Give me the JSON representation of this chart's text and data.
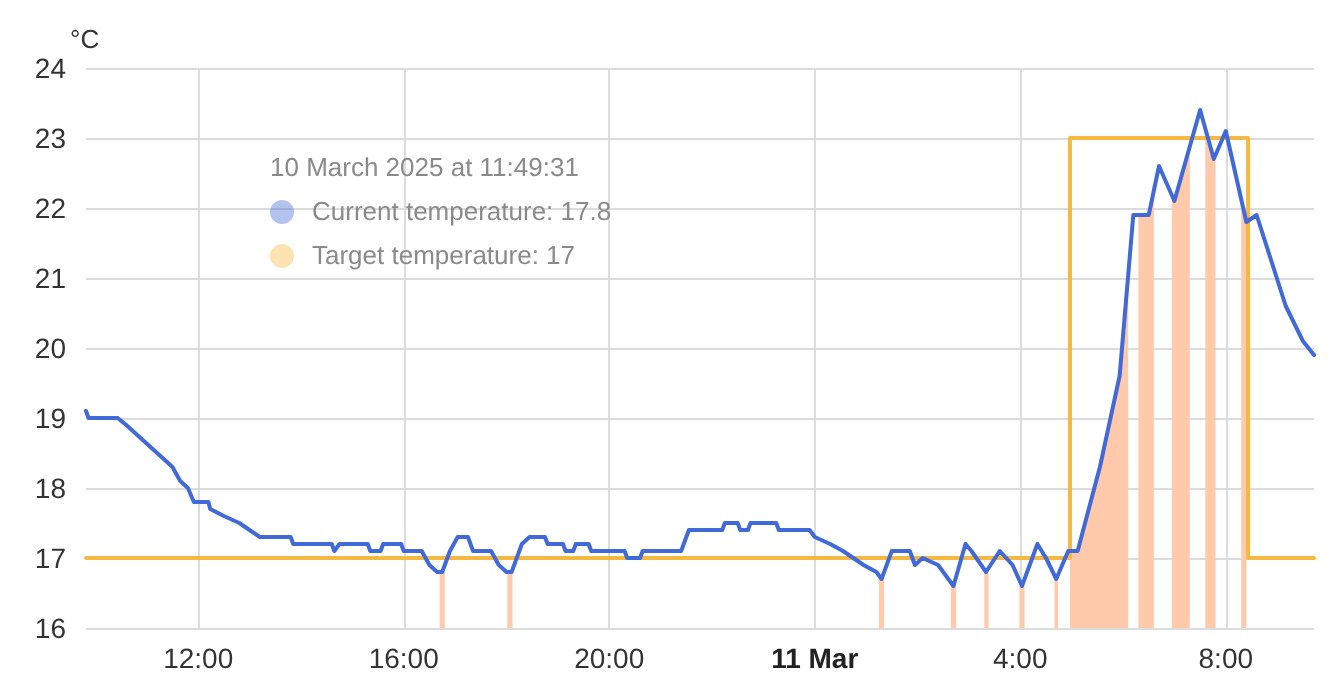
{
  "chart_data": {
    "type": "line",
    "ylabel": "°C",
    "xlim": [
      "2025-03-10T09:49",
      "2025-03-11T09:43"
    ],
    "xticks": [
      {
        "value": "2025-03-10T12:00",
        "label": "12:00"
      },
      {
        "value": "2025-03-10T16:00",
        "label": "16:00"
      },
      {
        "value": "2025-03-10T20:00",
        "label": "20:00"
      },
      {
        "value": "2025-03-11T00:00",
        "label": "11 Mar"
      },
      {
        "value": "2025-03-11T04:00",
        "label": "4:00"
      },
      {
        "value": "2025-03-11T08:00",
        "label": "8:00"
      }
    ],
    "ylim": [
      16,
      24
    ],
    "yticks": [
      16,
      17,
      18,
      19,
      20,
      21,
      22,
      23,
      24
    ],
    "grid": true,
    "marker": "none",
    "annotations": [
      "10 March 2025 at 11:49:31",
      "Current temperature: 17.8",
      "Target temperature: 17"
    ],
    "series": [
      {
        "type": "area",
        "color": "#ffc9ab",
        "x": [
          "2025-03-10T16:42",
          "2025-03-10T16:48",
          "2025-03-10T16:49",
          "2025-03-10T18:01",
          "2025-03-10T18:07",
          "2025-03-10T18:08",
          "2025-03-11T01:15",
          "2025-03-11T01:21",
          "2025-03-11T01:22",
          "2025-03-11T02:39",
          "2025-03-11T02:45",
          "2025-03-11T02:46",
          "2025-03-11T03:18",
          "2025-03-11T03:23",
          "2025-03-11T03:24",
          "2025-03-11T03:59",
          "2025-03-11T04:05",
          "2025-03-11T04:06",
          "2025-03-11T04:40",
          "2025-03-11T04:44",
          "2025-03-11T04:45",
          "2025-03-11T04:58",
          "2025-03-11T05:07",
          "2025-03-11T05:33",
          "2025-03-11T05:56",
          "2025-03-11T06:06",
          "2025-03-11T06:07",
          "2025-03-11T06:18",
          "2025-03-11T06:30",
          "2025-03-11T06:36",
          "2025-03-11T06:37",
          "2025-03-11T06:57",
          "2025-03-11T07:00",
          "2025-03-11T07:18",
          "2025-03-11T07:19",
          "2025-03-11T07:36",
          "2025-03-11T07:46",
          "2025-03-11T07:48",
          "2025-03-11T07:49",
          "2025-03-11T08:18",
          "2025-03-11T08:24"
        ],
        "values": [
          16.8,
          16.8,
          null,
          16.8,
          16.8,
          null,
          16.7,
          16.7,
          null,
          16.6,
          16.6,
          null,
          16.8,
          16.8,
          null,
          16.6,
          16.6,
          null,
          16.7,
          16.7,
          null,
          17.1,
          17.1,
          18.3,
          19.6,
          21.0,
          null,
          21.9,
          21.9,
          22.2,
          null,
          22.2,
          22.1,
          22.9,
          null,
          23.0,
          22.7,
          22.8,
          null,
          22.0,
          21.8
        ]
      },
      {
        "type": "step",
        "color": "#f5b942",
        "x": [
          "2025-03-10T09:49",
          "2025-03-11T04:58",
          "2025-03-11T08:26",
          "2025-03-11T09:43"
        ],
        "values": [
          17,
          23,
          17,
          17
        ]
      },
      {
        "color": "#4169d8",
        "x": [
          "2025-03-10T09:49",
          "2025-03-10T09:52",
          "2025-03-10T10:26",
          "2025-03-10T10:36",
          "2025-03-10T10:45",
          "2025-03-10T10:54",
          "2025-03-10T11:03",
          "2025-03-10T11:12",
          "2025-03-10T11:21",
          "2025-03-10T11:30",
          "2025-03-10T11:39",
          "2025-03-10T11:48",
          "2025-03-10T11:55",
          "2025-03-10T12:12",
          "2025-03-10T12:14",
          "2025-03-10T12:30",
          "2025-03-10T12:48",
          "2025-03-10T13:00",
          "2025-03-10T13:12",
          "2025-03-10T13:48",
          "2025-03-10T13:51",
          "2025-03-10T14:36",
          "2025-03-10T14:39",
          "2025-03-10T14:45",
          "2025-03-10T15:18",
          "2025-03-10T15:21",
          "2025-03-10T15:33",
          "2025-03-10T15:36",
          "2025-03-10T15:57",
          "2025-03-10T16:00",
          "2025-03-10T16:21",
          "2025-03-10T16:30",
          "2025-03-10T16:39",
          "2025-03-10T16:45",
          "2025-03-10T16:54",
          "2025-03-10T17:03",
          "2025-03-10T17:15",
          "2025-03-10T17:21",
          "2025-03-10T17:42",
          "2025-03-10T17:51",
          "2025-03-10T18:00",
          "2025-03-10T18:06",
          "2025-03-10T18:18",
          "2025-03-10T18:27",
          "2025-03-10T18:45",
          "2025-03-10T18:48",
          "2025-03-10T19:06",
          "2025-03-10T19:09",
          "2025-03-10T19:18",
          "2025-03-10T19:21",
          "2025-03-10T19:36",
          "2025-03-10T19:39",
          "2025-03-10T20:18",
          "2025-03-10T20:21",
          "2025-03-10T20:36",
          "2025-03-10T20:39",
          "2025-03-10T21:24",
          "2025-03-10T21:33",
          "2025-03-10T22:12",
          "2025-03-10T22:15",
          "2025-03-10T22:30",
          "2025-03-10T22:33",
          "2025-03-10T22:42",
          "2025-03-10T22:45",
          "2025-03-10T23:15",
          "2025-03-10T23:18",
          "2025-03-10T23:54",
          "2025-03-11T00:00",
          "2025-03-11T00:18",
          "2025-03-11T00:33",
          "2025-03-11T00:45",
          "2025-03-11T00:57",
          "2025-03-11T01:12",
          "2025-03-11T01:18",
          "2025-03-11T01:30",
          "2025-03-11T01:51",
          "2025-03-11T01:57",
          "2025-03-11T02:06",
          "2025-03-11T02:24",
          "2025-03-11T02:42",
          "2025-03-11T02:56",
          "2025-03-11T03:03",
          "2025-03-11T03:20",
          "2025-03-11T03:36",
          "2025-03-11T03:51",
          "2025-03-11T04:02",
          "2025-03-11T04:20",
          "2025-03-11T04:30",
          "2025-03-11T04:42",
          "2025-03-11T04:56",
          "2025-03-11T05:07",
          "2025-03-11T05:33",
          "2025-03-11T05:56",
          "2025-03-11T06:12",
          "2025-03-11T06:30",
          "2025-03-11T06:42",
          "2025-03-11T07:00",
          "2025-03-11T07:30",
          "2025-03-11T07:46",
          "2025-03-11T08:00",
          "2025-03-11T08:24",
          "2025-03-11T08:36",
          "2025-03-11T09:10",
          "2025-03-11T09:30",
          "2025-03-11T09:43"
        ],
        "values": [
          19.1,
          19.0,
          19.0,
          18.9,
          18.8,
          18.7,
          18.6,
          18.5,
          18.4,
          18.3,
          18.1,
          18.0,
          17.8,
          17.8,
          17.7,
          17.6,
          17.5,
          17.4,
          17.3,
          17.3,
          17.2,
          17.2,
          17.1,
          17.2,
          17.2,
          17.1,
          17.1,
          17.2,
          17.2,
          17.1,
          17.1,
          16.9,
          16.8,
          16.8,
          17.1,
          17.3,
          17.3,
          17.1,
          17.1,
          16.9,
          16.8,
          16.8,
          17.2,
          17.3,
          17.3,
          17.2,
          17.2,
          17.1,
          17.1,
          17.2,
          17.2,
          17.1,
          17.1,
          17.0,
          17.0,
          17.1,
          17.1,
          17.4,
          17.4,
          17.5,
          17.5,
          17.4,
          17.4,
          17.5,
          17.5,
          17.4,
          17.4,
          17.3,
          17.2,
          17.1,
          17.0,
          16.9,
          16.8,
          16.7,
          17.1,
          17.1,
          16.9,
          17.0,
          16.9,
          16.6,
          17.2,
          17.1,
          16.8,
          17.1,
          16.9,
          16.6,
          17.2,
          17.0,
          16.7,
          17.1,
          17.1,
          18.3,
          19.6,
          21.9,
          21.9,
          22.6,
          22.1,
          23.4,
          22.7,
          23.1,
          21.8,
          21.9,
          20.6,
          20.1,
          19.9
        ]
      }
    ]
  }
}
